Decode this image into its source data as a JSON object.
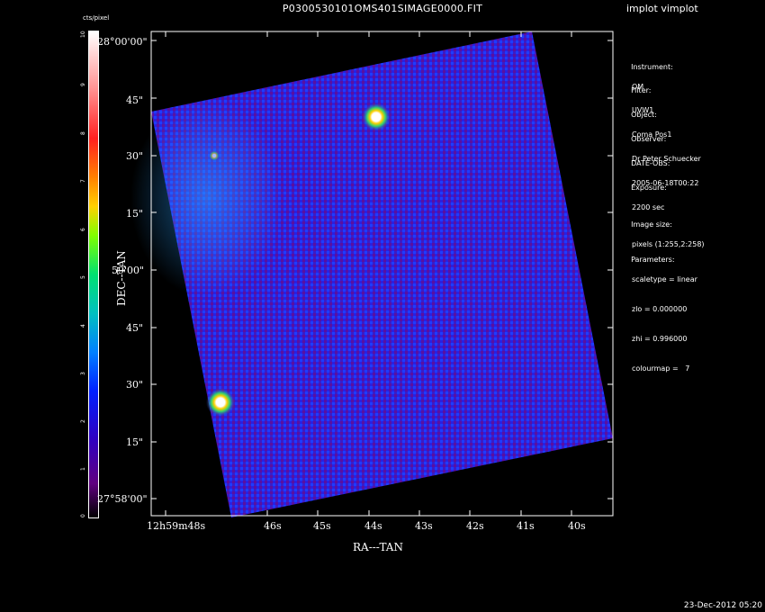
{
  "title": "P0300530101OMS401SIMAGE0000.FIT",
  "app_label": "implot vimplot",
  "timestamp": "23-Dec-2012 05:20",
  "colorbar": {
    "unit": "cts/pixel",
    "ticks": [
      "10",
      "9",
      "8",
      "7",
      "6",
      "5",
      "4",
      "3",
      "2",
      "1",
      "0"
    ]
  },
  "info": {
    "instrument_label": "Instrument:",
    "instrument": "OM",
    "filter_label": "Filter:",
    "filter": "UVW1",
    "object_label": "Object:",
    "object": "Coma Pos1",
    "observer_label": "Observer:",
    "observer": "Dr Peter Schuecker",
    "date_label": "DATE-OBS:",
    "date": "2005-06-18T00:22",
    "exposure_label": "Exposure:",
    "exposure": "2200 sec",
    "imagesize_label": "Image size:",
    "imagesize": "pixels (1:255,2:258)",
    "params_label": "Parameters:",
    "scaletype": "scaletype = linear",
    "zlo": "zlo = 0.000000",
    "zhi": "zhi = 0.996000",
    "colourmap": "colourmap =   7"
  },
  "axes": {
    "xlabel": "RA---TAN",
    "ylabel": "DEC--TAN",
    "xticks": [
      "12h59m48s",
      "46s",
      "45s",
      "44s",
      "43s",
      "42s",
      "41s",
      "40s"
    ],
    "yticks": [
      "28°00'00\"",
      "45\"",
      "30\"",
      "15\"",
      "59'00\"",
      "45\"",
      "30\"",
      "15\"",
      "27°58'00\""
    ]
  },
  "colors": {
    "background": "#000000",
    "text": "#ffffff",
    "axis": "#ffffff"
  }
}
